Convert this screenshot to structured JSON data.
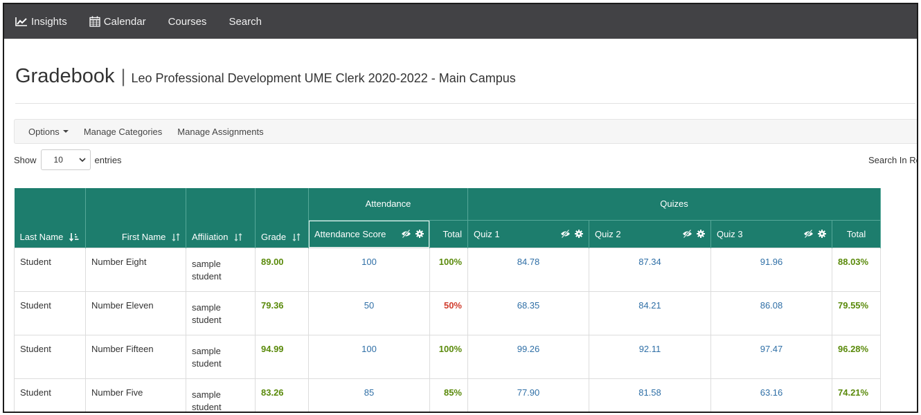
{
  "nav": {
    "items": [
      {
        "label": "Insights",
        "icon": "chart-line-icon"
      },
      {
        "label": "Calendar",
        "icon": "calendar-icon"
      },
      {
        "label": "Courses",
        "icon": ""
      },
      {
        "label": "Search",
        "icon": ""
      }
    ]
  },
  "header": {
    "title": "Gradebook",
    "separator": "|",
    "course": "Leo Professional Development UME Clerk 2020-2022 - Main Campus"
  },
  "toolbar": {
    "options": "Options",
    "manage_categories": "Manage Categories",
    "manage_assignments": "Manage Assignments"
  },
  "table_controls": {
    "show": "Show",
    "entries_value": "10",
    "entries": "entries",
    "search_label": "Search In Re"
  },
  "table": {
    "group_headers": {
      "attendance": "Attendance",
      "quizes": "Quizes"
    },
    "columns": {
      "last_name": "Last Name",
      "first_name": "First Name",
      "affiliation": "Affiliation",
      "grade": "Grade",
      "attendance_score": "Attendance Score",
      "attendance_total": "Total",
      "quiz1": "Quiz 1",
      "quiz2": "Quiz 2",
      "quiz3": "Quiz 3",
      "quiz_total": "Total"
    },
    "rows": [
      {
        "last": "Student",
        "first": "Number Eight",
        "affiliation": "sample student",
        "grade": "89.00",
        "att_score": "100",
        "att_total": "100%",
        "att_total_status": "good",
        "q1": "84.78",
        "q2": "87.34",
        "q3": "91.96",
        "q_total": "88.03%"
      },
      {
        "last": "Student",
        "first": "Number Eleven",
        "affiliation": "sample student",
        "grade": "79.36",
        "att_score": "50",
        "att_total": "50%",
        "att_total_status": "bad",
        "q1": "68.35",
        "q2": "84.21",
        "q3": "86.08",
        "q_total": "79.55%"
      },
      {
        "last": "Student",
        "first": "Number Fifteen",
        "affiliation": "sample student",
        "grade": "94.99",
        "att_score": "100",
        "att_total": "100%",
        "att_total_status": "good",
        "q1": "99.26",
        "q2": "92.11",
        "q3": "97.47",
        "q_total": "96.28%"
      },
      {
        "last": "Student",
        "first": "Number Five",
        "affiliation": "sample student",
        "grade": "83.26",
        "att_score": "85",
        "att_total": "85%",
        "att_total_status": "good",
        "q1": "77.90",
        "q2": "81.58",
        "q3": "63.16",
        "q_total": "74.21%"
      }
    ]
  },
  "colors": {
    "nav_bg": "#424245",
    "header_teal": "#1d7d6d",
    "link_blue": "#2f6fa6",
    "good_green": "#5a8a0b",
    "bad_red": "#d03b2c"
  }
}
